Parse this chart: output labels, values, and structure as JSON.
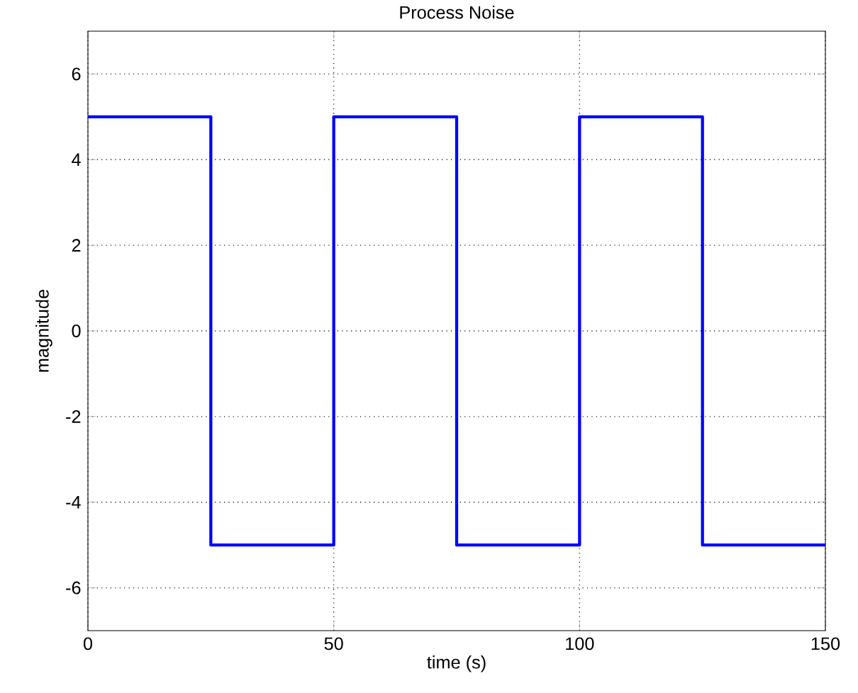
{
  "chart_data": {
    "type": "step",
    "title": "Process Noise",
    "xlabel": "time (s)",
    "ylabel": "magnitude",
    "x": [
      0,
      25,
      50,
      75,
      100,
      125,
      150
    ],
    "series": [
      {
        "color": "#0000ff",
        "values": [
          5,
          -5,
          5,
          -5,
          5,
          -5,
          -5
        ]
      }
    ],
    "xlim": [
      0,
      150
    ],
    "xticks": [
      0,
      50,
      100,
      150
    ],
    "ylim": [
      -7,
      7
    ],
    "yticks": [
      -6,
      -4,
      -2,
      0,
      2,
      4,
      6
    ],
    "grid": true
  }
}
